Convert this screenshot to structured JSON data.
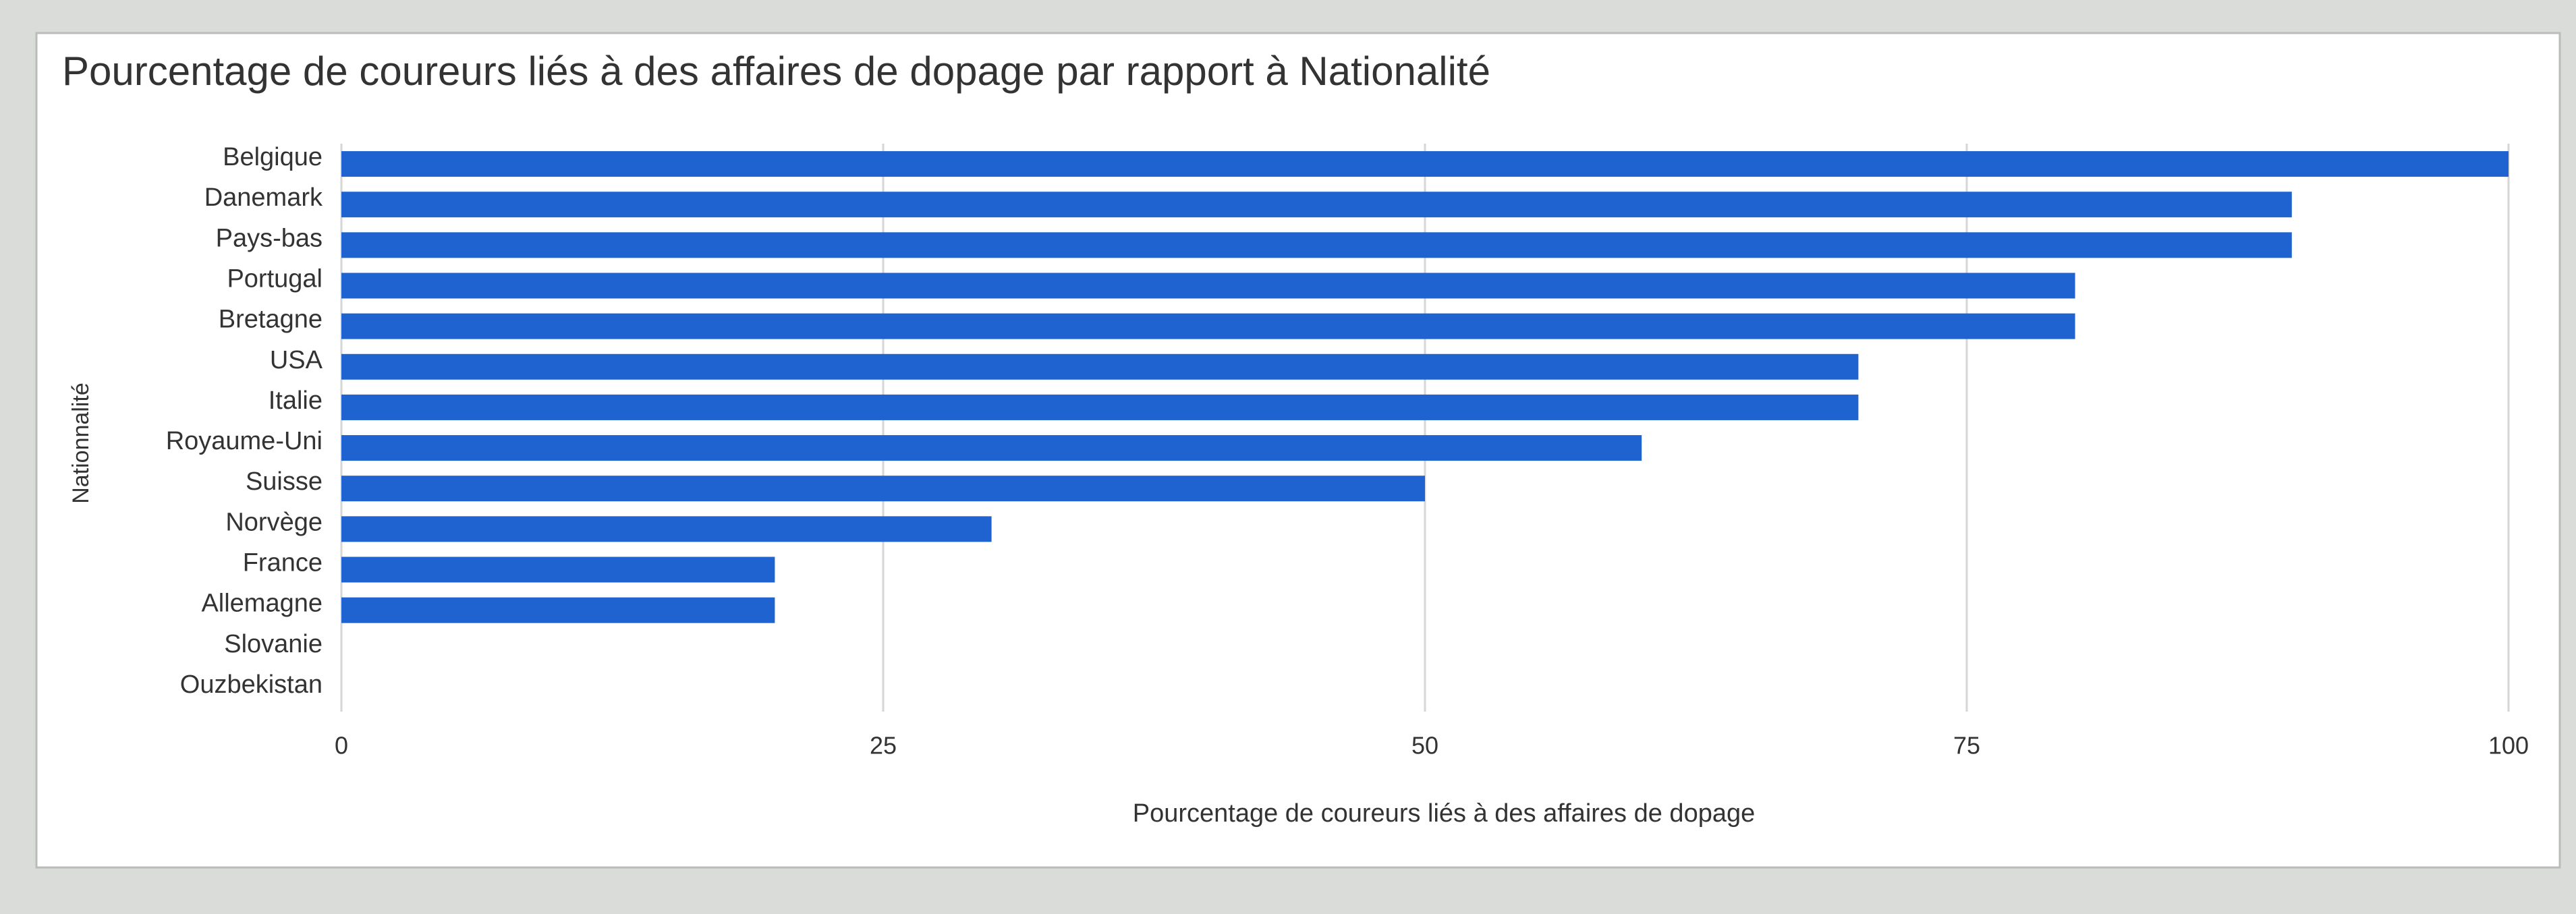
{
  "chart_data": {
    "type": "bar",
    "orientation": "horizontal",
    "title": "Pourcentage de coureurs liés à des affaires de dopage par rapport à Nationalité",
    "x_label": "Pourcentage de coureurs liés à des affaires de dopage",
    "y_label": "Nationnalité",
    "categories": [
      "Belgique",
      "Danemark",
      "Pays-bas",
      "Portugal",
      "Bretagne",
      "USA",
      "Italie",
      "Royaume-Uni",
      "Suisse",
      "Norvège",
      "France",
      "Allemagne",
      "Slovanie",
      "Ouzbekistan"
    ],
    "values": [
      100,
      90,
      90,
      80,
      80,
      70,
      70,
      60,
      50,
      30,
      20,
      20,
      0,
      0
    ],
    "color": "#1f63d0",
    "xlim": [
      0,
      102
    ],
    "xticks": [
      0,
      25,
      50,
      75,
      100
    ],
    "grid": true
  }
}
